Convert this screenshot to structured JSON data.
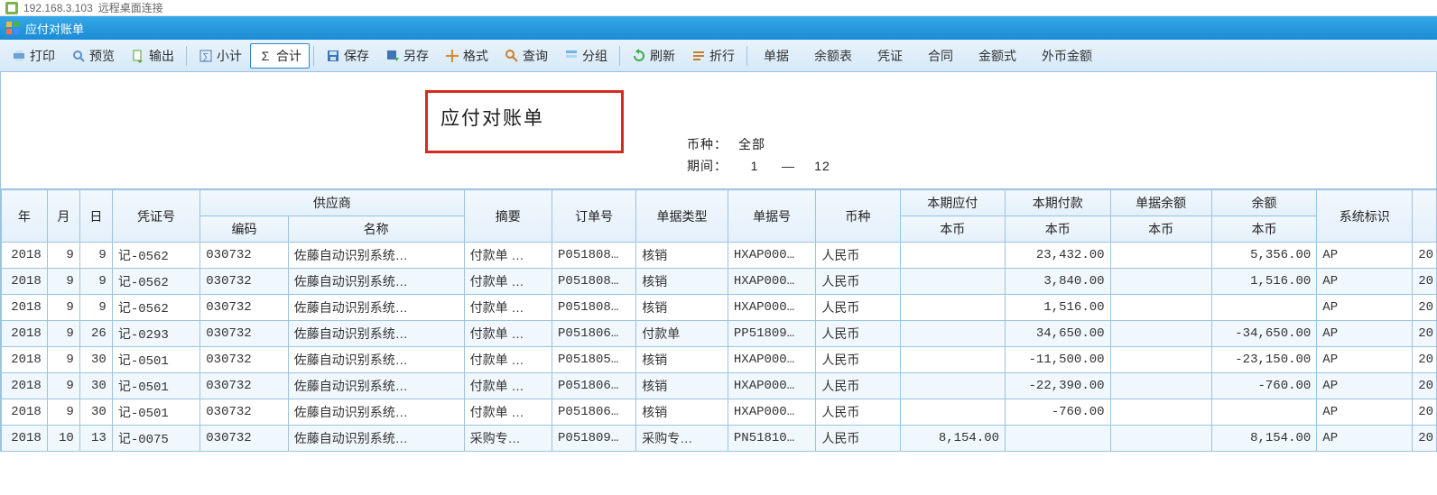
{
  "rd": {
    "host": "192.168.3.103",
    "suffix": "远程桌面连接"
  },
  "window": {
    "title": "应付对账单"
  },
  "toolbar": {
    "print": "打印",
    "preview": "预览",
    "export": "输出",
    "subtotal": "小计",
    "total": "合计",
    "save": "保存",
    "saveas": "另存",
    "format": "格式",
    "query": "查询",
    "group": "分组",
    "refresh": "刷新",
    "wrap": "折行"
  },
  "modes": [
    "单据",
    "余额表",
    "凭证",
    "合同",
    "金额式",
    "外币金额"
  ],
  "doc": {
    "title": "应付对账单"
  },
  "meta": {
    "currency_label": "币种：",
    "currency_value": "全部",
    "period_label": "期间：",
    "period_from": "1",
    "period_sep": "—",
    "period_to": "12"
  },
  "columns": {
    "year": "年",
    "month": "月",
    "day": "日",
    "voucher": "凭证号",
    "supplier": "供应商",
    "supplier_code": "编码",
    "supplier_name": "名称",
    "summary": "摘要",
    "order": "订单号",
    "bill_type": "单据类型",
    "bill_no": "单据号",
    "currency": "币种",
    "cur_pay": "本期应付",
    "cur_paid": "本期付款",
    "bill_bal": "单据余额",
    "balance": "余额",
    "local": "本币",
    "sysflag": "系统标识"
  },
  "rows": [
    {
      "year": "2018",
      "month": "9",
      "day": "9",
      "voucher": "记-0562",
      "scode": "030732",
      "sname": "佐藤自动识别系统…",
      "summary": "付款单 …",
      "order": "P051808…",
      "btype": "核销",
      "bno": "HXAP000…",
      "cur": "人民币",
      "a1": "",
      "a2": "23,432.00",
      "a3": "",
      "a4": "5,356.00",
      "sys": "AP",
      "tail": "20"
    },
    {
      "year": "2018",
      "month": "9",
      "day": "9",
      "voucher": "记-0562",
      "scode": "030732",
      "sname": "佐藤自动识别系统…",
      "summary": "付款单 …",
      "order": "P051808…",
      "btype": "核销",
      "bno": "HXAP000…",
      "cur": "人民币",
      "a1": "",
      "a2": "3,840.00",
      "a3": "",
      "a4": "1,516.00",
      "sys": "AP",
      "tail": "20"
    },
    {
      "year": "2018",
      "month": "9",
      "day": "9",
      "voucher": "记-0562",
      "scode": "030732",
      "sname": "佐藤自动识别系统…",
      "summary": "付款单 …",
      "order": "P051808…",
      "btype": "核销",
      "bno": "HXAP000…",
      "cur": "人民币",
      "a1": "",
      "a2": "1,516.00",
      "a3": "",
      "a4": "",
      "sys": "AP",
      "tail": "20"
    },
    {
      "year": "2018",
      "month": "9",
      "day": "26",
      "voucher": "记-0293",
      "scode": "030732",
      "sname": "佐藤自动识别系统…",
      "summary": "付款单 …",
      "order": "P051806…",
      "btype": "付款单",
      "bno": "PP51809…",
      "cur": "人民币",
      "a1": "",
      "a2": "34,650.00",
      "a3": "",
      "a4": "-34,650.00",
      "sys": "AP",
      "tail": "20"
    },
    {
      "year": "2018",
      "month": "9",
      "day": "30",
      "voucher": "记-0501",
      "scode": "030732",
      "sname": "佐藤自动识别系统…",
      "summary": "付款单 …",
      "order": "P051805…",
      "btype": "核销",
      "bno": "HXAP000…",
      "cur": "人民币",
      "a1": "",
      "a2": "-11,500.00",
      "a3": "",
      "a4": "-23,150.00",
      "sys": "AP",
      "tail": "20"
    },
    {
      "year": "2018",
      "month": "9",
      "day": "30",
      "voucher": "记-0501",
      "scode": "030732",
      "sname": "佐藤自动识别系统…",
      "summary": "付款单 …",
      "order": "P051806…",
      "btype": "核销",
      "bno": "HXAP000…",
      "cur": "人民币",
      "a1": "",
      "a2": "-22,390.00",
      "a3": "",
      "a4": "-760.00",
      "sys": "AP",
      "tail": "20"
    },
    {
      "year": "2018",
      "month": "9",
      "day": "30",
      "voucher": "记-0501",
      "scode": "030732",
      "sname": "佐藤自动识别系统…",
      "summary": "付款单 …",
      "order": "P051806…",
      "btype": "核销",
      "bno": "HXAP000…",
      "cur": "人民币",
      "a1": "",
      "a2": "-760.00",
      "a3": "",
      "a4": "",
      "sys": "AP",
      "tail": "20"
    },
    {
      "year": "2018",
      "month": "10",
      "day": "13",
      "voucher": "记-0075",
      "scode": "030732",
      "sname": "佐藤自动识别系统…",
      "summary": "采购专…",
      "order": "P051809…",
      "btype": "采购专…",
      "bno": "PN51810…",
      "cur": "人民币",
      "a1": "8,154.00",
      "a2": "",
      "a3": "",
      "a4": "8,154.00",
      "sys": "AP",
      "tail": "20"
    }
  ]
}
